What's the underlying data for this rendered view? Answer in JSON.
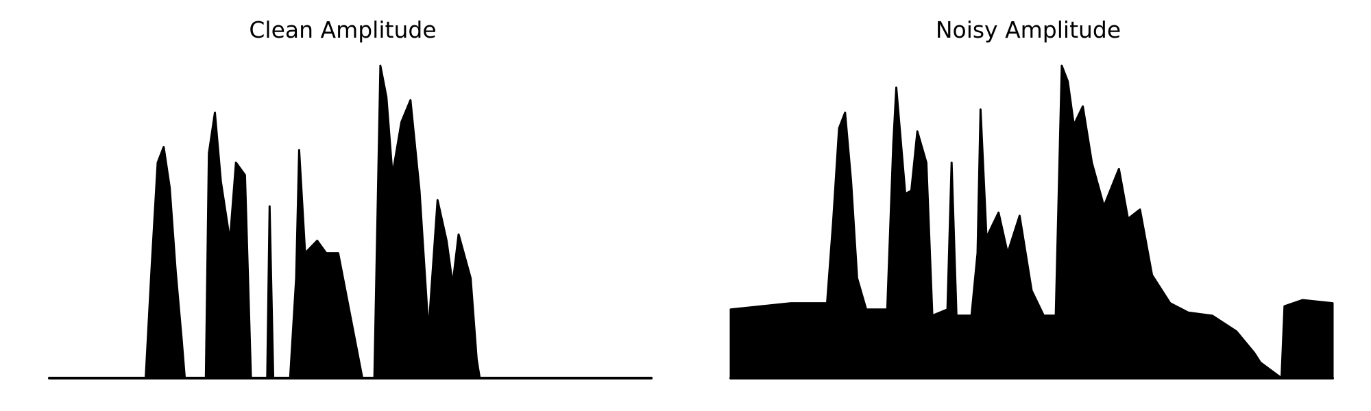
{
  "chart_data": [
    {
      "type": "line",
      "title": "Clean Amplitude",
      "xlabel": "",
      "ylabel": "",
      "axes_visible": false,
      "grid": false,
      "color": "#000000",
      "xlim": [
        0,
        1
      ],
      "ylim": [
        0,
        1
      ],
      "envelope": [
        {
          "x": 0.0,
          "y": 0.0
        },
        {
          "x": 0.16,
          "y": 0.0
        },
        {
          "x": 0.17,
          "y": 0.36
        },
        {
          "x": 0.18,
          "y": 0.69
        },
        {
          "x": 0.19,
          "y": 0.74
        },
        {
          "x": 0.2,
          "y": 0.61
        },
        {
          "x": 0.21,
          "y": 0.34
        },
        {
          "x": 0.22,
          "y": 0.12
        },
        {
          "x": 0.225,
          "y": 0.0
        },
        {
          "x": 0.26,
          "y": 0.0
        },
        {
          "x": 0.265,
          "y": 0.72
        },
        {
          "x": 0.275,
          "y": 0.85
        },
        {
          "x": 0.285,
          "y": 0.63
        },
        {
          "x": 0.3,
          "y": 0.44
        },
        {
          "x": 0.31,
          "y": 0.69
        },
        {
          "x": 0.325,
          "y": 0.65
        },
        {
          "x": 0.335,
          "y": 0.0
        },
        {
          "x": 0.362,
          "y": 0.0
        },
        {
          "x": 0.366,
          "y": 0.55
        },
        {
          "x": 0.372,
          "y": 0.0
        },
        {
          "x": 0.4,
          "y": 0.0
        },
        {
          "x": 0.41,
          "y": 0.32
        },
        {
          "x": 0.415,
          "y": 0.73
        },
        {
          "x": 0.425,
          "y": 0.4
        },
        {
          "x": 0.445,
          "y": 0.44
        },
        {
          "x": 0.46,
          "y": 0.4
        },
        {
          "x": 0.48,
          "y": 0.4
        },
        {
          "x": 0.5,
          "y": 0.2
        },
        {
          "x": 0.52,
          "y": 0.0
        },
        {
          "x": 0.54,
          "y": 0.0
        },
        {
          "x": 0.55,
          "y": 1.0
        },
        {
          "x": 0.56,
          "y": 0.9
        },
        {
          "x": 0.57,
          "y": 0.65
        },
        {
          "x": 0.585,
          "y": 0.82
        },
        {
          "x": 0.6,
          "y": 0.89
        },
        {
          "x": 0.615,
          "y": 0.6
        },
        {
          "x": 0.63,
          "y": 0.15
        },
        {
          "x": 0.645,
          "y": 0.57
        },
        {
          "x": 0.66,
          "y": 0.44
        },
        {
          "x": 0.67,
          "y": 0.3
        },
        {
          "x": 0.68,
          "y": 0.46
        },
        {
          "x": 0.7,
          "y": 0.32
        },
        {
          "x": 0.71,
          "y": 0.06
        },
        {
          "x": 0.715,
          "y": 0.0
        },
        {
          "x": 1.0,
          "y": 0.0
        }
      ]
    },
    {
      "type": "line",
      "title": "Noisy Amplitude",
      "xlabel": "",
      "ylabel": "",
      "axes_visible": false,
      "grid": false,
      "color": "#000000",
      "xlim": [
        0,
        1
      ],
      "ylim": [
        0,
        1
      ],
      "envelope": [
        {
          "x": 0.0,
          "y": 0.22
        },
        {
          "x": 0.1,
          "y": 0.24
        },
        {
          "x": 0.16,
          "y": 0.24
        },
        {
          "x": 0.17,
          "y": 0.5
        },
        {
          "x": 0.18,
          "y": 0.8
        },
        {
          "x": 0.19,
          "y": 0.85
        },
        {
          "x": 0.2,
          "y": 0.63
        },
        {
          "x": 0.21,
          "y": 0.32
        },
        {
          "x": 0.225,
          "y": 0.22
        },
        {
          "x": 0.26,
          "y": 0.22
        },
        {
          "x": 0.27,
          "y": 0.75
        },
        {
          "x": 0.275,
          "y": 0.93
        },
        {
          "x": 0.29,
          "y": 0.59
        },
        {
          "x": 0.3,
          "y": 0.6
        },
        {
          "x": 0.31,
          "y": 0.79
        },
        {
          "x": 0.325,
          "y": 0.69
        },
        {
          "x": 0.335,
          "y": 0.2
        },
        {
          "x": 0.36,
          "y": 0.22
        },
        {
          "x": 0.367,
          "y": 0.69
        },
        {
          "x": 0.375,
          "y": 0.2
        },
        {
          "x": 0.4,
          "y": 0.2
        },
        {
          "x": 0.41,
          "y": 0.4
        },
        {
          "x": 0.415,
          "y": 0.86
        },
        {
          "x": 0.425,
          "y": 0.45
        },
        {
          "x": 0.445,
          "y": 0.53
        },
        {
          "x": 0.46,
          "y": 0.4
        },
        {
          "x": 0.48,
          "y": 0.52
        },
        {
          "x": 0.5,
          "y": 0.28
        },
        {
          "x": 0.52,
          "y": 0.2
        },
        {
          "x": 0.54,
          "y": 0.2
        },
        {
          "x": 0.55,
          "y": 1.0
        },
        {
          "x": 0.56,
          "y": 0.95
        },
        {
          "x": 0.57,
          "y": 0.81
        },
        {
          "x": 0.585,
          "y": 0.87
        },
        {
          "x": 0.6,
          "y": 0.69
        },
        {
          "x": 0.62,
          "y": 0.55
        },
        {
          "x": 0.645,
          "y": 0.67
        },
        {
          "x": 0.66,
          "y": 0.51
        },
        {
          "x": 0.68,
          "y": 0.54
        },
        {
          "x": 0.7,
          "y": 0.33
        },
        {
          "x": 0.73,
          "y": 0.24
        },
        {
          "x": 0.76,
          "y": 0.21
        },
        {
          "x": 0.8,
          "y": 0.2
        },
        {
          "x": 0.84,
          "y": 0.15
        },
        {
          "x": 0.87,
          "y": 0.08
        },
        {
          "x": 0.88,
          "y": 0.05
        },
        {
          "x": 0.915,
          "y": 0.0
        },
        {
          "x": 0.92,
          "y": 0.23
        },
        {
          "x": 0.95,
          "y": 0.25
        },
        {
          "x": 1.0,
          "y": 0.24
        }
      ]
    }
  ]
}
